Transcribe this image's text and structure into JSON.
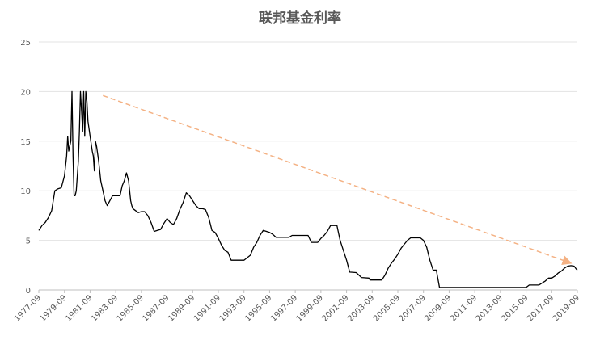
{
  "chart_data": {
    "type": "line",
    "title": "联邦基金利率",
    "xlabel": "",
    "ylabel": "",
    "ylim": [
      0,
      25
    ],
    "y_ticks": [
      "0",
      "5",
      "10",
      "15",
      "20",
      "25"
    ],
    "x_tick_labels": [
      "1977-09",
      "1979-09",
      "1981-09",
      "1983-09",
      "1985-09",
      "1987-09",
      "1989-09",
      "1991-09",
      "1993-09",
      "1995-09",
      "1997-09",
      "1999-09",
      "2001-09",
      "2003-09",
      "2005-09",
      "2007-09",
      "2009-09",
      "2011-09",
      "2013-09",
      "2015-09",
      "2017-09",
      "2019-09"
    ],
    "x_range": [
      "1977-09",
      "2019-09"
    ],
    "grid": "horizontal",
    "series": [
      {
        "color": "#000000",
        "points": [
          [
            "1977-09",
            6.0
          ],
          [
            "1977-12",
            6.5
          ],
          [
            "1978-03",
            6.8
          ],
          [
            "1978-06",
            7.3
          ],
          [
            "1978-09",
            8.0
          ],
          [
            "1978-12",
            10.0
          ],
          [
            "1979-03",
            10.2
          ],
          [
            "1979-06",
            10.3
          ],
          [
            "1979-09",
            11.5
          ],
          [
            "1979-11",
            13.5
          ],
          [
            "1979-12",
            15.5
          ],
          [
            "1980-01",
            14.0
          ],
          [
            "1980-03",
            15.0
          ],
          [
            "1980-04",
            20.0
          ],
          [
            "1980-05",
            13.5
          ],
          [
            "1980-06",
            9.5
          ],
          [
            "1980-07",
            9.5
          ],
          [
            "1980-08",
            10.0
          ],
          [
            "1980-10",
            13.0
          ],
          [
            "1980-11",
            16.0
          ],
          [
            "1980-12",
            20.0
          ],
          [
            "1981-01",
            18.0
          ],
          [
            "1981-02",
            16.0
          ],
          [
            "1981-03",
            20.0
          ],
          [
            "1981-04",
            15.5
          ],
          [
            "1981-05",
            20.0
          ],
          [
            "1981-06",
            19.0
          ],
          [
            "1981-07",
            17.0
          ],
          [
            "1981-09",
            15.5
          ],
          [
            "1981-11",
            14.0
          ],
          [
            "1981-12",
            13.5
          ],
          [
            "1982-01",
            12.0
          ],
          [
            "1982-02",
            15.0
          ],
          [
            "1982-03",
            14.5
          ],
          [
            "1982-05",
            13.0
          ],
          [
            "1982-07",
            11.0
          ],
          [
            "1982-09",
            10.0
          ],
          [
            "1982-11",
            9.0
          ],
          [
            "1983-01",
            8.5
          ],
          [
            "1983-06",
            9.5
          ],
          [
            "1983-09",
            9.5
          ],
          [
            "1984-01",
            9.5
          ],
          [
            "1984-03",
            10.5
          ],
          [
            "1984-05",
            11.0
          ],
          [
            "1984-07",
            11.8
          ],
          [
            "1984-09",
            11.0
          ],
          [
            "1984-11",
            9.0
          ],
          [
            "1984-12",
            8.5
          ],
          [
            "1985-01",
            8.2
          ],
          [
            "1985-06",
            7.8
          ],
          [
            "1985-09",
            7.9
          ],
          [
            "1985-12",
            7.9
          ],
          [
            "1986-03",
            7.5
          ],
          [
            "1986-06",
            6.8
          ],
          [
            "1986-09",
            5.9
          ],
          [
            "1986-12",
            6.0
          ],
          [
            "1987-03",
            6.1
          ],
          [
            "1987-06",
            6.7
          ],
          [
            "1987-09",
            7.2
          ],
          [
            "1987-12",
            6.8
          ],
          [
            "1988-03",
            6.6
          ],
          [
            "1988-06",
            7.2
          ],
          [
            "1988-09",
            8.1
          ],
          [
            "1988-12",
            8.8
          ],
          [
            "1989-03",
            9.8
          ],
          [
            "1989-06",
            9.5
          ],
          [
            "1989-09",
            9.0
          ],
          [
            "1989-12",
            8.5
          ],
          [
            "1990-03",
            8.2
          ],
          [
            "1990-06",
            8.2
          ],
          [
            "1990-09",
            8.1
          ],
          [
            "1990-12",
            7.3
          ],
          [
            "1991-03",
            6.0
          ],
          [
            "1991-06",
            5.8
          ],
          [
            "1991-09",
            5.2
          ],
          [
            "1991-12",
            4.5
          ],
          [
            "1992-03",
            4.0
          ],
          [
            "1992-06",
            3.8
          ],
          [
            "1992-09",
            3.0
          ],
          [
            "1993-03",
            3.0
          ],
          [
            "1993-09",
            3.0
          ],
          [
            "1994-03",
            3.5
          ],
          [
            "1994-06",
            4.3
          ],
          [
            "1994-09",
            4.8
          ],
          [
            "1994-12",
            5.5
          ],
          [
            "1995-03",
            6.0
          ],
          [
            "1995-09",
            5.8
          ],
          [
            "1995-12",
            5.6
          ],
          [
            "1996-03",
            5.3
          ],
          [
            "1996-09",
            5.3
          ],
          [
            "1997-03",
            5.3
          ],
          [
            "1997-06",
            5.5
          ],
          [
            "1997-09",
            5.5
          ],
          [
            "1998-03",
            5.5
          ],
          [
            "1998-09",
            5.5
          ],
          [
            "1998-12",
            4.8
          ],
          [
            "1999-06",
            4.8
          ],
          [
            "1999-09",
            5.2
          ],
          [
            "1999-12",
            5.5
          ],
          [
            "2000-03",
            5.9
          ],
          [
            "2000-06",
            6.5
          ],
          [
            "2000-09",
            6.5
          ],
          [
            "2000-12",
            6.5
          ],
          [
            "2001-03",
            5.0
          ],
          [
            "2001-06",
            4.0
          ],
          [
            "2001-09",
            3.0
          ],
          [
            "2001-12",
            1.8
          ],
          [
            "2002-06",
            1.75
          ],
          [
            "2002-11",
            1.25
          ],
          [
            "2003-06",
            1.2
          ],
          [
            "2003-07",
            1.0
          ],
          [
            "2004-06",
            1.0
          ],
          [
            "2004-09",
            1.5
          ],
          [
            "2004-12",
            2.2
          ],
          [
            "2005-03",
            2.7
          ],
          [
            "2005-06",
            3.1
          ],
          [
            "2005-09",
            3.6
          ],
          [
            "2005-12",
            4.2
          ],
          [
            "2006-03",
            4.6
          ],
          [
            "2006-06",
            5.0
          ],
          [
            "2006-09",
            5.25
          ],
          [
            "2007-03",
            5.25
          ],
          [
            "2007-06",
            5.25
          ],
          [
            "2007-09",
            5.0
          ],
          [
            "2007-12",
            4.3
          ],
          [
            "2008-03",
            3.0
          ],
          [
            "2008-06",
            2.0
          ],
          [
            "2008-09",
            2.0
          ],
          [
            "2008-12",
            0.25
          ],
          [
            "2009-06",
            0.25
          ],
          [
            "2010-09",
            0.25
          ],
          [
            "2012-09",
            0.25
          ],
          [
            "2014-09",
            0.25
          ],
          [
            "2015-09",
            0.25
          ],
          [
            "2015-12",
            0.5
          ],
          [
            "2016-09",
            0.5
          ],
          [
            "2016-12",
            0.7
          ],
          [
            "2017-03",
            0.9
          ],
          [
            "2017-06",
            1.2
          ],
          [
            "2017-09",
            1.2
          ],
          [
            "2017-12",
            1.4
          ],
          [
            "2018-03",
            1.7
          ],
          [
            "2018-06",
            1.9
          ],
          [
            "2018-09",
            2.2
          ],
          [
            "2018-12",
            2.4
          ],
          [
            "2019-03",
            2.45
          ],
          [
            "2019-06",
            2.4
          ],
          [
            "2019-08",
            2.1
          ],
          [
            "2019-09",
            2.0
          ]
        ]
      }
    ],
    "trend_arrow": {
      "color": "#f4b183",
      "style": "dashed",
      "from": [
        "1982-09",
        19.6
      ],
      "to": [
        "2019-03",
        2.7
      ]
    }
  }
}
